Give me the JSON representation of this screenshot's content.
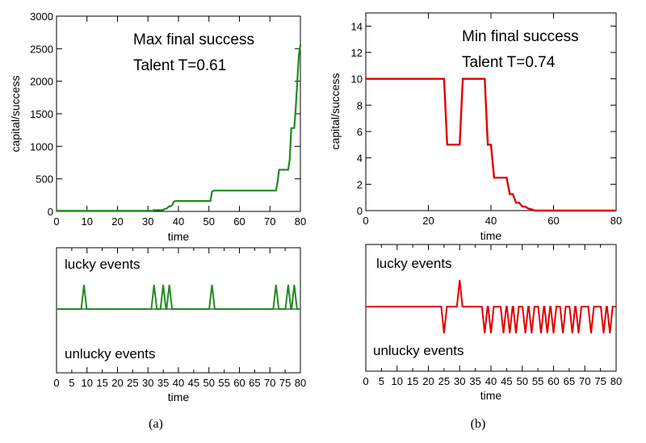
{
  "chart_data": [
    {
      "type": "line",
      "panel": "(a)",
      "title": "",
      "annotations": [
        "Max final success",
        "Talent T=0.61"
      ],
      "xlabel": "time",
      "ylabel": "capital/success",
      "xlim": [
        0,
        80
      ],
      "ylim": [
        0,
        3000
      ],
      "xticks": [
        0,
        10,
        20,
        30,
        40,
        50,
        60,
        70,
        80
      ],
      "yticks": [
        0,
        500,
        1000,
        1500,
        2000,
        2500,
        3000
      ],
      "grid": false,
      "color": "#228B22",
      "series": [
        {
          "x": [
            0,
            31.5,
            32,
            35,
            35.5,
            36,
            37,
            37.5,
            38,
            38.5,
            39,
            50.5,
            51,
            51.5,
            72,
            72.5,
            73,
            73.5,
            76,
            76.5,
            77,
            77.5,
            78,
            78.5,
            79,
            79.5,
            80
          ],
          "y": [
            10,
            10,
            20,
            20,
            40,
            40,
            80,
            80,
            100,
            150,
            160,
            160,
            300,
            320,
            320,
            450,
            640,
            640,
            640,
            800,
            1280,
            1280,
            1280,
            1600,
            2000,
            2400,
            2560
          ]
        }
      ]
    },
    {
      "type": "line",
      "panel": "(b)",
      "title": "",
      "annotations": [
        "Min final success",
        "Talent T=0.74"
      ],
      "xlabel": "time",
      "ylabel": "capital/success",
      "xlim": [
        0,
        80
      ],
      "ylim": [
        0,
        15
      ],
      "xticks": [
        0,
        20,
        40,
        60,
        80
      ],
      "yticks": [
        0,
        2,
        4,
        6,
        8,
        10,
        12,
        14
      ],
      "grid": false,
      "color": "#E00000",
      "series": [
        {
          "x": [
            0,
            25,
            26,
            29,
            30,
            31,
            38,
            39,
            40,
            41,
            42,
            45,
            46,
            47,
            48,
            49,
            50,
            51,
            52,
            53,
            54,
            80
          ],
          "y": [
            10,
            10,
            5,
            5,
            5,
            10,
            10,
            5,
            5,
            2.5,
            2.5,
            2.5,
            1.25,
            1.25,
            0.6,
            0.6,
            0.3,
            0.3,
            0.15,
            0.1,
            0,
            0
          ]
        }
      ]
    },
    {
      "type": "line",
      "panel": "(a) events",
      "title": "",
      "xlabel": "time",
      "labels": [
        "lucky events",
        "unlucky events"
      ],
      "xlim": [
        0,
        80
      ],
      "xticks": [
        0,
        5,
        10,
        15,
        20,
        25,
        30,
        35,
        40,
        45,
        50,
        55,
        60,
        65,
        70,
        75,
        80
      ],
      "color": "#228B22",
      "lucky_times": [
        9,
        32,
        35,
        37,
        51,
        72,
        76,
        78
      ],
      "unlucky_times": []
    },
    {
      "type": "line",
      "panel": "(b) events",
      "title": "",
      "xlabel": "time",
      "labels": [
        "lucky events",
        "unlucky events"
      ],
      "xlim": [
        0,
        80
      ],
      "xticks": [
        0,
        5,
        10,
        15,
        20,
        25,
        30,
        35,
        40,
        45,
        50,
        55,
        60,
        65,
        70,
        75,
        80
      ],
      "color": "#E00000",
      "lucky_times": [
        30
      ],
      "unlucky_times": [
        25,
        38,
        40,
        44,
        46,
        48,
        51,
        53,
        56,
        58,
        60,
        63,
        66,
        68,
        72,
        76,
        78
      ]
    }
  ],
  "captions": [
    "(a)",
    "(b)"
  ]
}
